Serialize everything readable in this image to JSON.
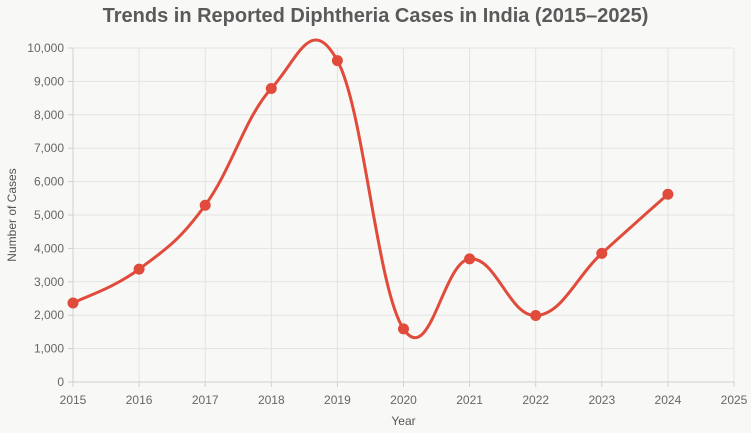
{
  "chart_data": {
    "type": "line",
    "title": "Trends in Reported Diphtheria Cases in India (2015–2025)",
    "xlabel": "Year",
    "ylabel": "Number of Cases",
    "x": [
      2015,
      2016,
      2017,
      2018,
      2019,
      2020,
      2021,
      2022,
      2023,
      2024
    ],
    "x_ticks": [
      "2015",
      "2016",
      "2017",
      "2018",
      "2019",
      "2020",
      "2021",
      "2022",
      "2023",
      "2024",
      "2025"
    ],
    "xlim": [
      2015,
      2025
    ],
    "ylim": [
      0,
      10000
    ],
    "y_ticks": [
      "0",
      "1,000",
      "2,000",
      "3,000",
      "4,000",
      "5,000",
      "6,000",
      "7,000",
      "8,000",
      "9,000",
      "10,000"
    ],
    "series": [
      {
        "name": "Reported Diphtheria Cases",
        "values": [
          2365,
          3380,
          5293,
          8788,
          9622,
          1590,
          3686,
          1990,
          3850,
          5620
        ],
        "color": "#e14b3b"
      }
    ],
    "grid": true
  }
}
